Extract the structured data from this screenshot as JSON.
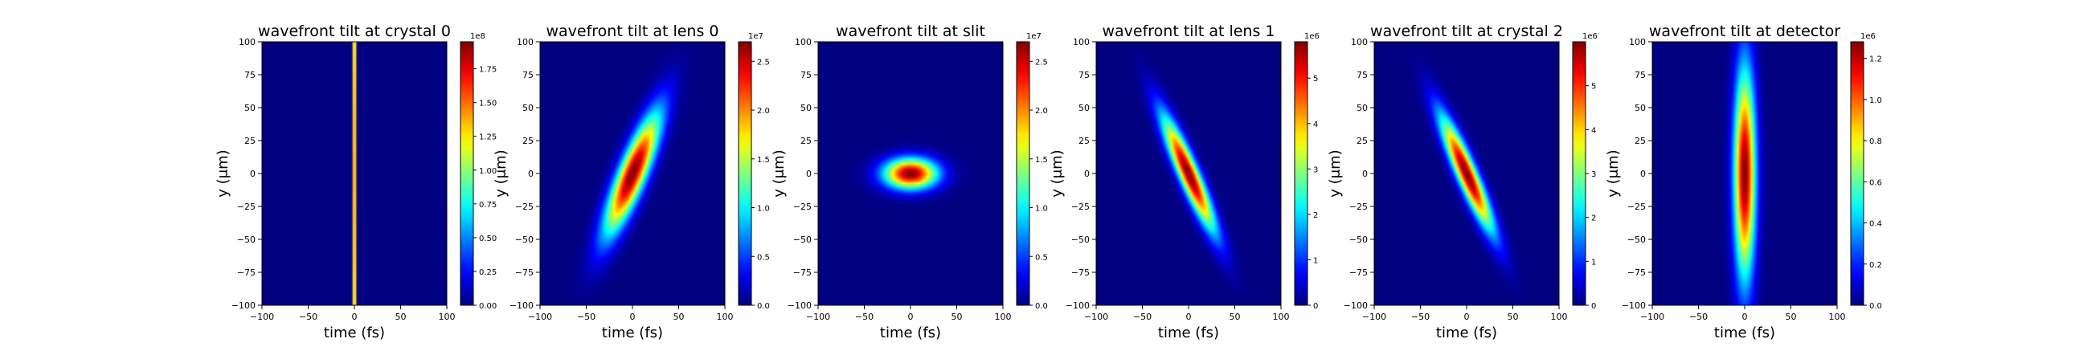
{
  "chart_data": [
    {
      "type": "heatmap",
      "title": "wavefront tilt at crystal 0",
      "xlabel": "time (fs)",
      "ylabel": "y (μm)",
      "xlim": [
        -100,
        100
      ],
      "ylim": [
        -100,
        100
      ],
      "xticks": [
        "−100",
        "−50",
        "0",
        "50",
        "100"
      ],
      "yticks": [
        "100",
        "75",
        "50",
        "25",
        "0",
        "−25",
        "−50",
        "−75",
        "−100"
      ],
      "colormap": "jet",
      "color_range": [
        0,
        1.95
      ],
      "colorbar_multiplier": "1e8",
      "colorbar_ticks": [
        "0.00",
        "0.25",
        "0.50",
        "0.75",
        "1.00",
        "1.25",
        "1.50",
        "1.75"
      ],
      "intensity_profile": {
        "center_t": 0,
        "sigma_t": 1.2,
        "tilt_fs_per_um": 0.0,
        "center_y": 0,
        "sigma_y": 300,
        "peak": 1.95
      }
    },
    {
      "type": "heatmap",
      "title": "wavefront tilt at lens 0",
      "xlabel": "time (fs)",
      "ylabel": "y (μm)",
      "xlim": [
        -100,
        100
      ],
      "ylim": [
        -100,
        100
      ],
      "xticks": [
        "−100",
        "−50",
        "0",
        "50",
        "100"
      ],
      "yticks": [
        "100",
        "75",
        "50",
        "25",
        "0",
        "−25",
        "−50",
        "−75",
        "−100"
      ],
      "colormap": "jet",
      "color_range": [
        0,
        2.7
      ],
      "colorbar_multiplier": "1e7",
      "colorbar_ticks": [
        "0.0",
        "0.5",
        "1.0",
        "1.5",
        "2.0",
        "2.5"
      ],
      "intensity_profile": {
        "center_t": 0,
        "sigma_t": 11,
        "tilt_fs_per_um": 0.55,
        "center_y": 0,
        "sigma_y": 32,
        "peak": 2.7
      }
    },
    {
      "type": "heatmap",
      "title": "wavefront tilt at slit",
      "xlabel": "time (fs)",
      "ylabel": "y (μm)",
      "xlim": [
        -100,
        100
      ],
      "ylim": [
        -100,
        100
      ],
      "xticks": [
        "−100",
        "−50",
        "0",
        "50",
        "100"
      ],
      "yticks": [
        "100",
        "75",
        "50",
        "25",
        "0",
        "−25",
        "−50",
        "−75",
        "−100"
      ],
      "colormap": "jet",
      "color_range": [
        0,
        2.7
      ],
      "colorbar_multiplier": "1e7",
      "colorbar_ticks": [
        "0.0",
        "0.5",
        "1.0",
        "1.5",
        "2.0",
        "2.5"
      ],
      "intensity_profile": {
        "center_t": 0,
        "sigma_t": 20,
        "tilt_fs_per_um": 0.0,
        "center_y": 0,
        "sigma_y": 8,
        "peak": 2.7
      }
    },
    {
      "type": "heatmap",
      "title": "wavefront tilt at lens 1",
      "xlabel": "time (fs)",
      "ylabel": "y (μm)",
      "xlim": [
        -100,
        100
      ],
      "ylim": [
        -100,
        100
      ],
      "xticks": [
        "−100",
        "−50",
        "0",
        "50",
        "100"
      ],
      "yticks": [
        "100",
        "75",
        "50",
        "25",
        "0",
        "−25",
        "−50",
        "−75",
        "−100"
      ],
      "colormap": "jet",
      "color_range": [
        0,
        5.8
      ],
      "colorbar_multiplier": "1e6",
      "colorbar_ticks": [
        "0",
        "1",
        "2",
        "3",
        "4",
        "5"
      ],
      "intensity_profile": {
        "center_t": 0,
        "sigma_t": 8,
        "tilt_fs_per_um": -0.6,
        "center_y": 0,
        "sigma_y": 30,
        "peak": 5.8
      }
    },
    {
      "type": "heatmap",
      "title": "wavefront tilt at crystal 2",
      "xlabel": "time (fs)",
      "ylabel": "y (μm)",
      "xlim": [
        -100,
        100
      ],
      "ylim": [
        -100,
        100
      ],
      "xticks": [
        "−100",
        "−50",
        "0",
        "50",
        "100"
      ],
      "yticks": [
        "100",
        "75",
        "50",
        "25",
        "0",
        "−25",
        "−50",
        "−75",
        "−100"
      ],
      "colormap": "jet",
      "color_range": [
        0,
        6.0
      ],
      "colorbar_multiplier": "1e6",
      "colorbar_ticks": [
        "0",
        "1",
        "2",
        "3",
        "4",
        "5"
      ],
      "intensity_profile": {
        "center_t": 0,
        "sigma_t": 8,
        "tilt_fs_per_um": -0.6,
        "center_y": 0,
        "sigma_y": 30,
        "peak": 6.0
      }
    },
    {
      "type": "heatmap",
      "title": "wavefront tilt at detector",
      "xlabel": "time (fs)",
      "ylabel": "y (μm)",
      "xlim": [
        -100,
        100
      ],
      "ylim": [
        -100,
        100
      ],
      "xticks": [
        "−100",
        "−50",
        "0",
        "50",
        "100"
      ],
      "yticks": [
        "100",
        "75",
        "50",
        "25",
        "0",
        "−25",
        "−50",
        "−75",
        "−100"
      ],
      "colormap": "jet",
      "color_range": [
        0,
        1.28
      ],
      "colorbar_multiplier": "1e6",
      "colorbar_ticks": [
        "0.0",
        "0.2",
        "0.4",
        "0.6",
        "0.8",
        "1.0",
        "1.2"
      ],
      "intensity_profile": {
        "center_t": 0,
        "sigma_t": 8,
        "tilt_fs_per_um": 0.0,
        "center_y": 0,
        "sigma_y": 55,
        "peak": 1.28
      }
    }
  ]
}
